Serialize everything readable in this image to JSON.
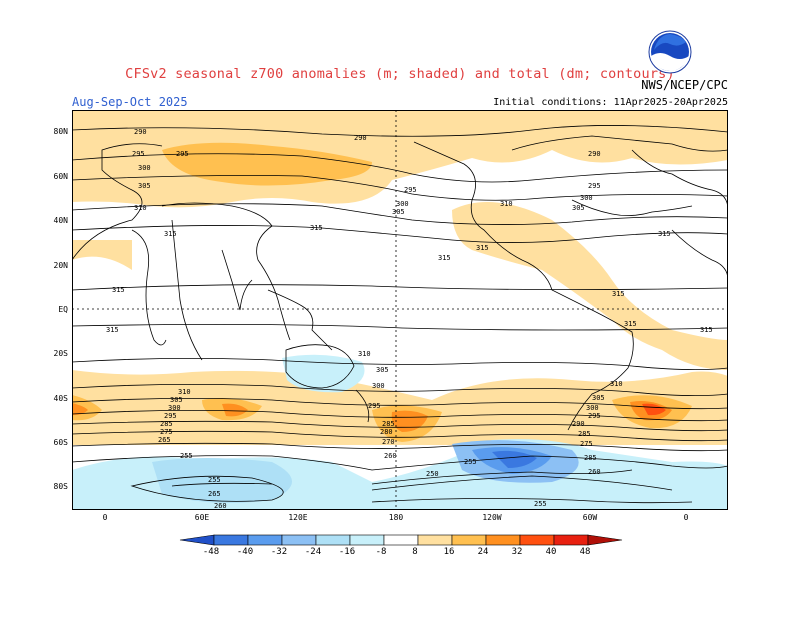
{
  "header": {
    "title": "CFSv2 seasonal z700 anomalies (m; shaded) and total (dm; contours)",
    "agency": "NWS/NCEP/CPC",
    "period": "Aug-Sep-Oct 2025",
    "initial_conditions": "Initial conditions: 11Apr2025-20Apr2025"
  },
  "logo": {
    "text": "NOAA"
  },
  "map": {
    "lat_labels": [
      "80N",
      "60N",
      "40N",
      "20N",
      "EQ",
      "20S",
      "40S",
      "60S",
      "80S"
    ],
    "lon_labels": [
      "0",
      "60E",
      "120E",
      "180",
      "120W",
      "60W",
      "0"
    ]
  },
  "contour_labels": [
    "290",
    "295",
    "300",
    "305",
    "310",
    "315",
    "285",
    "280",
    "275",
    "270",
    "265",
    "260",
    "255",
    "250"
  ],
  "colorbar": {
    "labels": [
      "-48",
      "-40",
      "-32",
      "-24",
      "-16",
      "-8",
      "8",
      "16",
      "24",
      "32",
      "40",
      "48"
    ],
    "colors": [
      "#2050c8",
      "#3a78e0",
      "#5a9cee",
      "#8cc0f4",
      "#aee0f6",
      "#c8f0fa",
      "#ffffff",
      "#ffe0a0",
      "#ffc050",
      "#ff9020",
      "#ff5010",
      "#e82010",
      "#b01008"
    ]
  }
}
